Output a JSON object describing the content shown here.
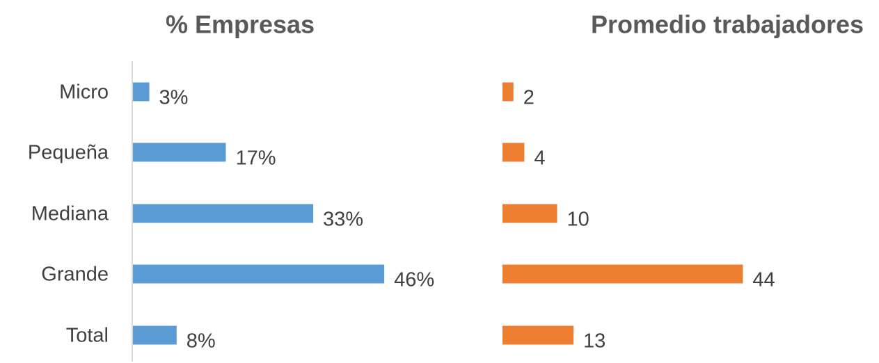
{
  "chart_data": [
    {
      "type": "bar",
      "orientation": "horizontal",
      "title": "% Empresas",
      "categories": [
        "Micro",
        "Pequeña",
        "Mediana",
        "Grande",
        "Total"
      ],
      "values": [
        3,
        17,
        33,
        46,
        8
      ],
      "data_labels": [
        "3%",
        "17%",
        "33%",
        "46%",
        "8%"
      ],
      "color": "#5B9BD5",
      "axis_line": true,
      "grid": false,
      "xlim": [
        0,
        50
      ]
    },
    {
      "type": "bar",
      "orientation": "horizontal",
      "title": "Promedio trabajadores",
      "categories": [
        "Micro",
        "Pequeña",
        "Mediana",
        "Grande",
        "Total"
      ],
      "values": [
        2,
        4,
        10,
        44,
        13
      ],
      "data_labels": [
        "2",
        "4",
        "10",
        "44",
        "13"
      ],
      "color": "#ED7D31",
      "axis_line": false,
      "grid": false,
      "xlim": [
        0,
        50
      ]
    }
  ]
}
